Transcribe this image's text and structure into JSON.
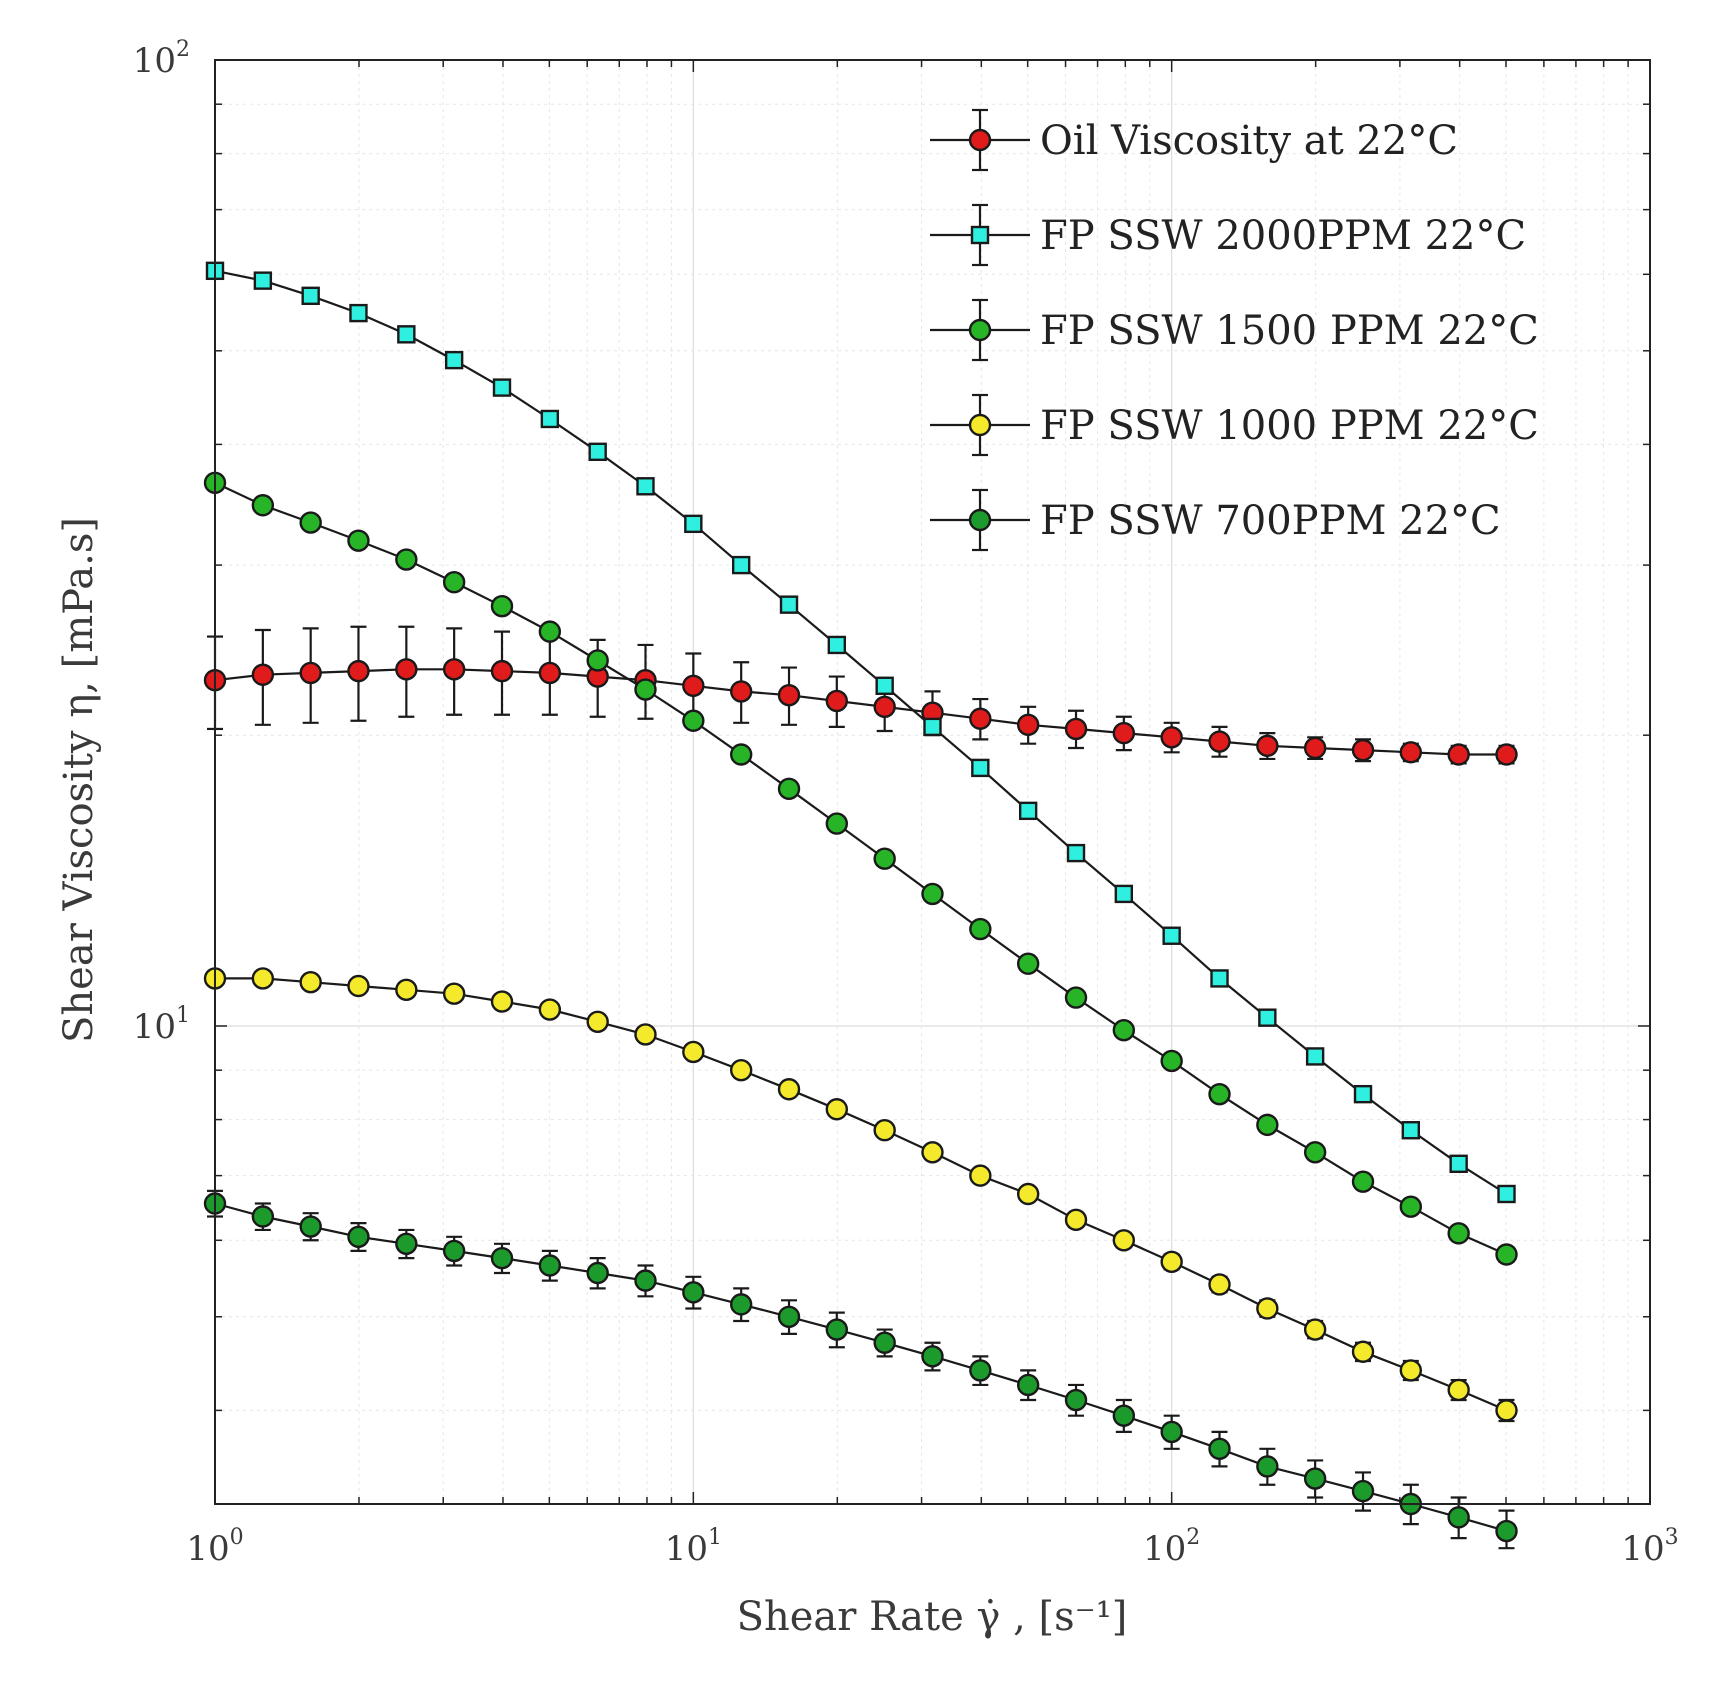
{
  "chart_data": {
    "type": "scatter",
    "xscale": "log",
    "yscale": "log",
    "xlim": [
      1,
      1000
    ],
    "ylim": [
      3.2,
      100
    ],
    "x_ticks": [
      {
        "base": "10",
        "exp": "0",
        "value": 1
      },
      {
        "base": "10",
        "exp": "1",
        "value": 10
      },
      {
        "base": "10",
        "exp": "2",
        "value": 100
      },
      {
        "base": "10",
        "exp": "3",
        "value": 1000
      }
    ],
    "y_ticks": [
      {
        "base": "10",
        "exp": "1",
        "value": 10
      },
      {
        "base": "10",
        "exp": "2",
        "value": 100
      }
    ],
    "xlabel": "Shear Rate γ̇ , [s⁻¹]",
    "ylabel": "Shear Viscosity η, [mPa.s]",
    "grid": true,
    "legend_position": "top-right",
    "x": [
      1.0,
      1.259,
      1.585,
      1.995,
      2.512,
      3.162,
      3.981,
      5.012,
      6.31,
      7.943,
      10.0,
      12.59,
      15.85,
      19.95,
      25.12,
      31.62,
      39.81,
      50.12,
      63.1,
      79.43,
      100.0,
      125.9,
      158.5,
      199.5,
      251.2,
      316.2,
      398.1,
      501.2
    ],
    "series": [
      {
        "name": "Oil Viscosity at 22°C",
        "marker": "circle",
        "color": "#e01b1b",
        "values": [
          22.8,
          23.1,
          23.2,
          23.3,
          23.4,
          23.4,
          23.3,
          23.2,
          23.0,
          22.8,
          22.5,
          22.2,
          22.0,
          21.7,
          21.4,
          21.1,
          20.8,
          20.5,
          20.3,
          20.1,
          19.9,
          19.7,
          19.5,
          19.4,
          19.3,
          19.2,
          19.1,
          19.1
        ],
        "errors": [
          2.5,
          2.6,
          2.6,
          2.6,
          2.5,
          2.4,
          2.3,
          2.2,
          2.1,
          2.0,
          1.8,
          1.6,
          1.5,
          1.3,
          1.2,
          1.1,
          1.0,
          0.9,
          0.9,
          0.8,
          0.7,
          0.7,
          0.6,
          0.5,
          0.5,
          0.4,
          0.4,
          0.4
        ]
      },
      {
        "name": "FP SSW 2000PPM 22°C",
        "marker": "square",
        "color": "#2ff0e0",
        "values": [
          60.5,
          59.1,
          57.0,
          54.7,
          52.0,
          48.9,
          45.8,
          42.5,
          39.3,
          36.2,
          33.1,
          30.0,
          27.3,
          24.8,
          22.5,
          20.4,
          18.5,
          16.7,
          15.1,
          13.7,
          12.4,
          11.2,
          10.2,
          9.3,
          8.5,
          7.8,
          7.2,
          6.7
        ],
        "errors": [
          0.7,
          0.6,
          0.6,
          0.6,
          0.5,
          0.5,
          0.5,
          0.4,
          0.4,
          0.4,
          0.3,
          0.3,
          0.3,
          0.3,
          0.2,
          0.2,
          0.2,
          0.2,
          0.2,
          0.1,
          0.1,
          0.1,
          0.1,
          0.1,
          0.1,
          0.1,
          0.1,
          0.1
        ]
      },
      {
        "name": "FP SSW 1500 PPM 22°C",
        "marker": "circle",
        "color": "#27b427",
        "values": [
          36.5,
          34.6,
          33.2,
          31.8,
          30.4,
          28.8,
          27.2,
          25.6,
          23.9,
          22.3,
          20.7,
          19.1,
          17.6,
          16.2,
          14.9,
          13.7,
          12.6,
          11.6,
          10.7,
          9.9,
          9.2,
          8.5,
          7.9,
          7.4,
          6.9,
          6.5,
          6.1,
          5.8
        ],
        "errors": [
          0.5,
          0.4,
          0.4,
          0.4,
          0.4,
          0.3,
          0.3,
          0.3,
          0.3,
          0.3,
          0.2,
          0.2,
          0.2,
          0.2,
          0.2,
          0.2,
          0.2,
          0.1,
          0.1,
          0.1,
          0.1,
          0.1,
          0.1,
          0.1,
          0.1,
          0.1,
          0.1,
          0.1
        ]
      },
      {
        "name": "FP SSW 1000 PPM 22°C",
        "marker": "circle",
        "color": "#f4ea2b",
        "values": [
          11.2,
          11.2,
          11.1,
          11.0,
          10.9,
          10.8,
          10.6,
          10.4,
          10.1,
          9.8,
          9.4,
          9.0,
          8.6,
          8.2,
          7.8,
          7.4,
          7.0,
          6.7,
          6.3,
          6.0,
          5.7,
          5.4,
          5.1,
          4.85,
          4.6,
          4.4,
          4.2,
          4.0
        ],
        "errors": [
          0.1,
          0.1,
          0.1,
          0.1,
          0.1,
          0.1,
          0.1,
          0.1,
          0.1,
          0.1,
          0.1,
          0.1,
          0.1,
          0.1,
          0.1,
          0.1,
          0.1,
          0.1,
          0.1,
          0.1,
          0.1,
          0.1,
          0.1,
          0.1,
          0.1,
          0.1,
          0.1,
          0.1
        ]
      },
      {
        "name": "FP SSW 700PPM 22°C",
        "marker": "circle",
        "color": "#1c9a2c",
        "values": [
          6.55,
          6.35,
          6.2,
          6.05,
          5.95,
          5.85,
          5.75,
          5.65,
          5.55,
          5.45,
          5.3,
          5.15,
          5.0,
          4.85,
          4.7,
          4.55,
          4.4,
          4.25,
          4.1,
          3.95,
          3.8,
          3.65,
          3.5,
          3.4,
          3.3,
          3.2,
          3.1,
          3.0
        ],
        "errors": [
          0.2,
          0.2,
          0.2,
          0.2,
          0.2,
          0.2,
          0.2,
          0.2,
          0.2,
          0.2,
          0.2,
          0.2,
          0.2,
          0.2,
          0.15,
          0.15,
          0.15,
          0.15,
          0.15,
          0.15,
          0.15,
          0.15,
          0.15,
          0.15,
          0.15,
          0.15,
          0.15,
          0.15
        ]
      }
    ]
  }
}
